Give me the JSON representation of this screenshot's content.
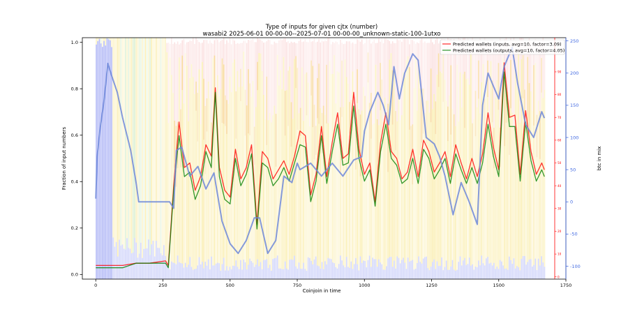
{
  "colors": {
    "inputs_line": "#ff0000",
    "outputs_line": "#008000",
    "btc_line": "#6f88d9",
    "red_axis": "#ff0000",
    "blue_axis": "#4169e1",
    "bg_yellow": "#f7e27a",
    "bg_orange": "#f5b87a",
    "bg_pink": "#f4a9a9",
    "bg_green": "#bfe3b0",
    "bg_blue": "#2436e6"
  },
  "chart_data": {
    "type": "line",
    "title": "Type of inputs for given cjtx (number)",
    "subtitle": "wasabi2 2025-06-01 00-00-00--2025-07-01 00-00-00_unknown-static-100-1utxo",
    "xlabel": "Coinjoin in time",
    "ylabel": "Fraction of input numbers",
    "y2label": "btc in mix",
    "xlim": [
      -50,
      1750
    ],
    "ylim": [
      -0.02,
      1.02
    ],
    "y2lim": [
      -120,
      255
    ],
    "y3lim": [
      -1,
      105
    ],
    "x_ticks": [
      0,
      250,
      500,
      750,
      1000,
      1250,
      1500,
      1750
    ],
    "y_ticks": [
      0.0,
      0.2,
      0.4,
      0.6,
      0.8,
      1.0
    ],
    "y_tick_labels": [
      "0.0",
      "0.2",
      "0.4",
      "0.6",
      "0.8",
      "1.0"
    ],
    "y2_ticks": [
      -100,
      -50,
      0,
      50,
      100,
      150,
      200,
      250
    ],
    "y3_ticks": [
      0,
      10,
      20,
      30,
      40,
      50,
      60,
      70,
      80,
      90
    ],
    "legend_position": "top-right",
    "legend": [
      "Predicted wallets (inputs, avg=10, factor=3.09)",
      "Predicted wallets (outputs, avg=10, factor=4.05)"
    ],
    "series": [
      {
        "name": "Predicted wallets (inputs, avg=10, factor=3.09)",
        "axis": "right-red",
        "x": [
          0,
          50,
          100,
          150,
          200,
          260,
          270,
          290,
          310,
          330,
          350,
          370,
          390,
          410,
          430,
          445,
          460,
          480,
          500,
          520,
          540,
          560,
          580,
          600,
          620,
          640,
          660,
          680,
          700,
          720,
          740,
          760,
          780,
          800,
          820,
          840,
          860,
          880,
          900,
          920,
          940,
          960,
          980,
          1000,
          1020,
          1040,
          1060,
          1080,
          1100,
          1120,
          1140,
          1160,
          1180,
          1200,
          1220,
          1240,
          1260,
          1280,
          1300,
          1320,
          1340,
          1360,
          1380,
          1400,
          1420,
          1440,
          1460,
          1480,
          1500,
          1520,
          1540,
          1560,
          1580,
          1600,
          1620,
          1640,
          1660,
          1670
        ],
        "values": [
          5,
          5,
          5,
          6,
          6,
          7,
          5,
          40,
          68,
          48,
          50,
          38,
          44,
          58,
          53,
          83,
          48,
          38,
          35,
          56,
          43,
          48,
          58,
          23,
          55,
          52,
          43,
          47,
          51,
          45,
          53,
          64,
          62,
          36,
          45,
          66,
          44,
          59,
          72,
          52,
          54,
          81,
          56,
          45,
          50,
          33,
          59,
          72,
          55,
          52,
          43,
          46,
          56,
          44,
          60,
          55,
          46,
          50,
          55,
          44,
          58,
          50,
          43,
          52,
          44,
          54,
          72,
          57,
          47,
          94,
          70,
          71,
          45,
          73,
          55,
          45,
          50,
          47
        ]
      },
      {
        "name": "Predicted wallets (outputs, avg=10, factor=4.05)",
        "axis": "right-red",
        "x": [
          0,
          50,
          100,
          150,
          200,
          260,
          270,
          290,
          310,
          330,
          350,
          370,
          390,
          410,
          430,
          445,
          460,
          480,
          500,
          520,
          540,
          560,
          580,
          600,
          620,
          640,
          660,
          680,
          700,
          720,
          740,
          760,
          780,
          800,
          820,
          840,
          860,
          880,
          900,
          920,
          940,
          960,
          980,
          1000,
          1020,
          1040,
          1060,
          1080,
          1100,
          1120,
          1140,
          1160,
          1180,
          1200,
          1220,
          1240,
          1260,
          1280,
          1300,
          1320,
          1340,
          1360,
          1380,
          1400,
          1420,
          1440,
          1460,
          1480,
          1500,
          1520,
          1540,
          1560,
          1580,
          1600,
          1620,
          1640,
          1660,
          1670
        ],
        "values": [
          4,
          4,
          4,
          6,
          6,
          6,
          4,
          38,
          62,
          44,
          46,
          34,
          40,
          55,
          48,
          81,
          44,
          34,
          32,
          52,
          40,
          45,
          54,
          21,
          50,
          48,
          40,
          43,
          48,
          42,
          50,
          58,
          57,
          33,
          42,
          62,
          41,
          55,
          67,
          49,
          50,
          75,
          52,
          42,
          47,
          31,
          55,
          67,
          52,
          49,
          41,
          43,
          52,
          41,
          56,
          52,
          43,
          47,
          52,
          41,
          54,
          47,
          41,
          48,
          41,
          50,
          67,
          53,
          44,
          90,
          66,
          66,
          42,
          68,
          51,
          42,
          47,
          44
        ]
      },
      {
        "name": "btc in mix",
        "axis": "right-blue",
        "x": [
          0,
          5,
          15,
          30,
          45,
          60,
          80,
          100,
          130,
          150,
          160,
          200,
          265,
          275,
          290,
          300,
          320,
          350,
          380,
          410,
          440,
          470,
          500,
          530,
          560,
          590,
          610,
          640,
          670,
          700,
          730,
          750,
          760,
          800,
          840,
          880,
          920,
          960,
          990,
          1000,
          1020,
          1050,
          1070,
          1090,
          1110,
          1130,
          1150,
          1180,
          1200,
          1230,
          1260,
          1280,
          1300,
          1330,
          1360,
          1390,
          1420,
          1440,
          1460,
          1480,
          1500,
          1520,
          1550,
          1570,
          1600,
          1630,
          1660,
          1670
        ],
        "values": [
          5,
          70,
          110,
          155,
          215,
          195,
          170,
          130,
          80,
          30,
          0,
          0,
          0,
          0,
          -10,
          80,
          85,
          40,
          55,
          20,
          45,
          -30,
          -65,
          -80,
          -60,
          -25,
          -25,
          -80,
          -60,
          40,
          30,
          60,
          50,
          60,
          40,
          60,
          40,
          65,
          70,
          110,
          140,
          170,
          150,
          120,
          210,
          160,
          200,
          230,
          220,
          100,
          90,
          70,
          40,
          -20,
          30,
          0,
          -35,
          150,
          200,
          180,
          160,
          210,
          240,
          185,
          120,
          100,
          140,
          130
        ]
      }
    ]
  }
}
